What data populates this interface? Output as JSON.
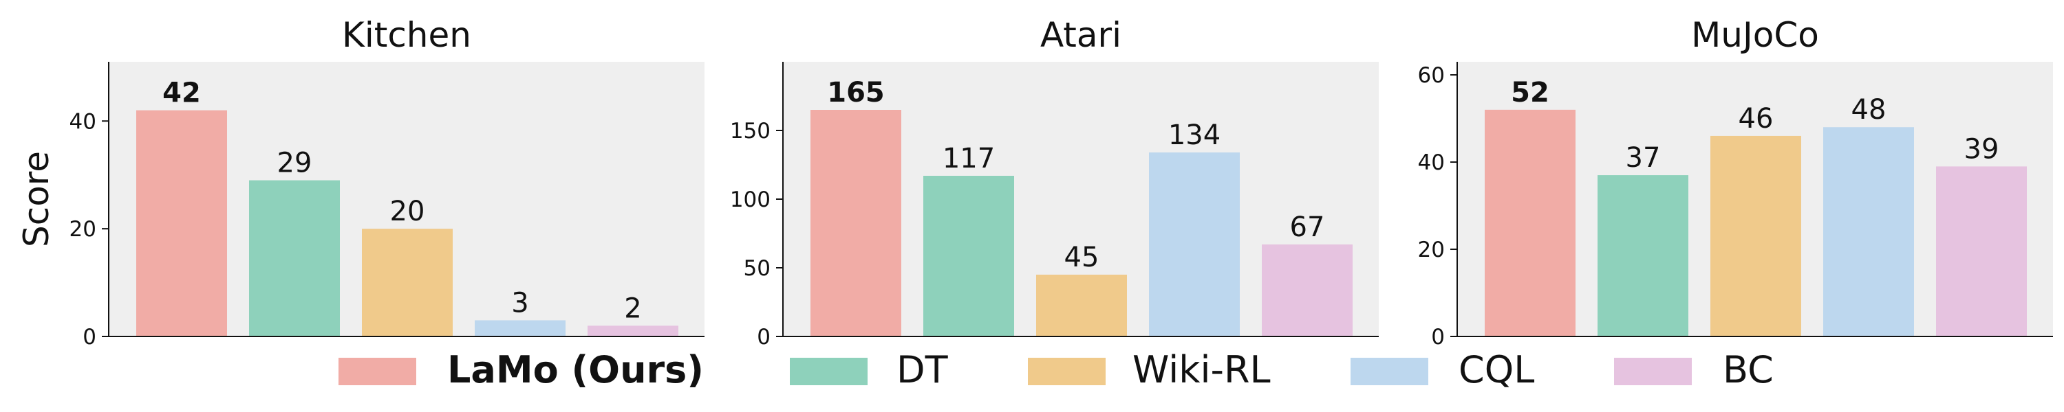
{
  "ylabel": "Score",
  "legend_position": "bottom",
  "series_colors": {
    "LaMo (Ours)": "#f1aca6",
    "DT": "#8ed1bb",
    "Wiki-RL": "#f0ca8b",
    "CQL": "#bdd7ee",
    "BC": "#e6c3e0"
  },
  "panel_background": "#efefef",
  "chart_data": [
    {
      "type": "bar",
      "title": "Kitchen",
      "categories": [
        "LaMo (Ours)",
        "DT",
        "Wiki-RL",
        "CQL",
        "BC"
      ],
      "values": [
        42,
        29,
        20,
        3,
        2
      ],
      "labels": [
        "42",
        "29",
        "20",
        "3",
        "2"
      ],
      "ylim": [
        0,
        51
      ],
      "yticks": [
        0,
        20,
        40
      ],
      "ylabel": "Score",
      "highlight": "LaMo (Ours)"
    },
    {
      "type": "bar",
      "title": "Atari",
      "categories": [
        "LaMo (Ours)",
        "DT",
        "Wiki-RL",
        "CQL",
        "BC"
      ],
      "values": [
        165,
        117,
        45,
        134,
        67
      ],
      "labels": [
        "165",
        "117",
        "45",
        "134",
        "67"
      ],
      "ylim": [
        0,
        200
      ],
      "yticks": [
        0,
        50,
        100,
        150
      ],
      "highlight": "LaMo (Ours)"
    },
    {
      "type": "bar",
      "title": "MuJoCo",
      "categories": [
        "LaMo (Ours)",
        "DT",
        "Wiki-RL",
        "CQL",
        "BC"
      ],
      "values": [
        52,
        37,
        46,
        48,
        39
      ],
      "labels": [
        "52",
        "37",
        "46",
        "48",
        "39"
      ],
      "ylim": [
        0,
        63
      ],
      "yticks": [
        0,
        20,
        40,
        60
      ],
      "highlight": "LaMo (Ours)"
    }
  ],
  "legend": [
    "LaMo (Ours)",
    "DT",
    "Wiki-RL",
    "CQL",
    "BC"
  ]
}
